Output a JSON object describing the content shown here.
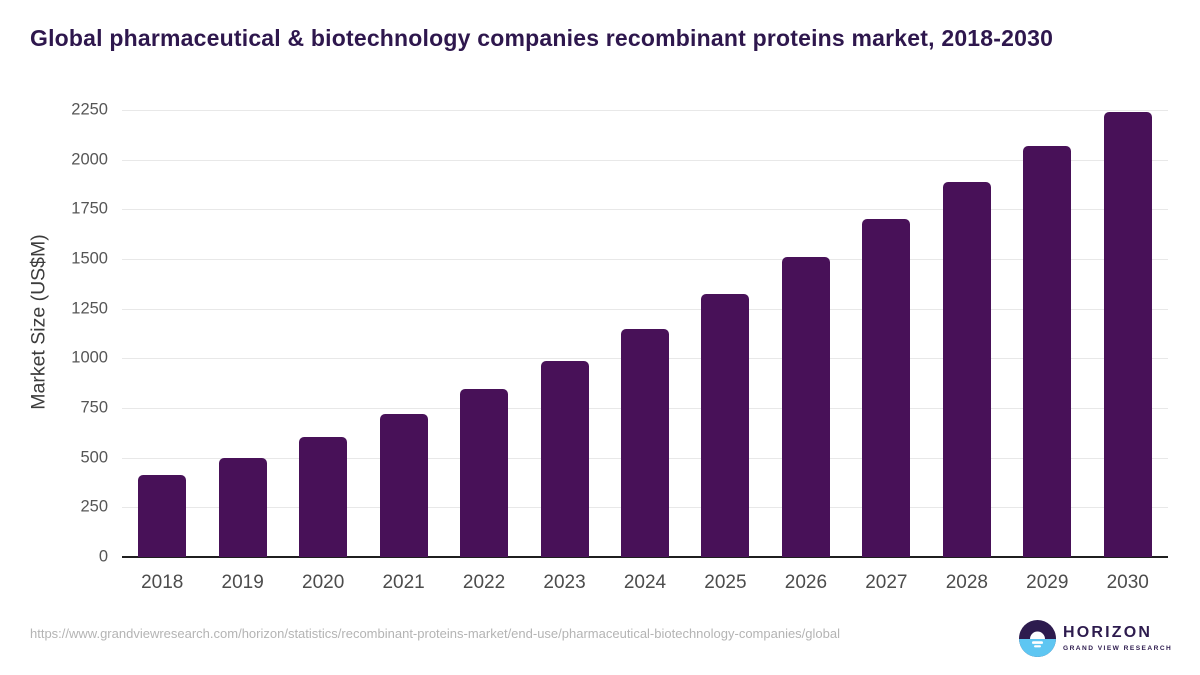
{
  "title": "Global pharmaceutical & biotechnology companies recombinant proteins market, 2018-2030",
  "chart_data": {
    "type": "bar",
    "title": "Global pharmaceutical & biotechnology companies recombinant proteins market, 2018-2030",
    "categories": [
      "2018",
      "2019",
      "2020",
      "2021",
      "2022",
      "2023",
      "2024",
      "2025",
      "2026",
      "2027",
      "2028",
      "2029",
      "2030"
    ],
    "values": [
      415,
      500,
      605,
      720,
      845,
      985,
      1150,
      1325,
      1510,
      1700,
      1890,
      2070,
      2240
    ],
    "xlabel": "",
    "ylabel": "Market Size (US$M)",
    "ylim": [
      0,
      2250
    ],
    "ytick_step": 250,
    "ytick_labels": [
      "0",
      "250",
      "500",
      "750",
      "1000",
      "1250",
      "1500",
      "1750",
      "2000",
      "2250"
    ],
    "grid": true,
    "legend": "none",
    "bar_color": "#481158"
  },
  "colors": {
    "title_text": "#2e174d",
    "bar": "#481158",
    "gridline": "#e8e8e8",
    "axis_line": "#1f1f1f",
    "tick_text": "#565656",
    "footer_text": "#b4b4b4",
    "logo_purple": "#2d1b4e",
    "logo_blue": "#5ec6f2"
  },
  "footer": {
    "source_url": "https://www.grandviewresearch.com/horizon/statistics/recombinant-proteins-market/end-use/pharmaceutical-biotechnology-companies/global",
    "logo": {
      "name": "HORIZON",
      "subtext": "GRAND VIEW RESEARCH"
    }
  }
}
